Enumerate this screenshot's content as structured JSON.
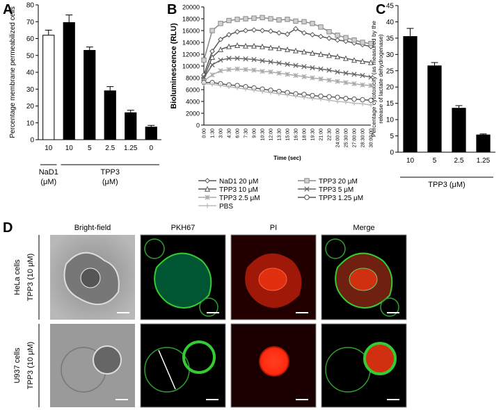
{
  "chart_data": [
    {
      "type": "bar",
      "panel": "A",
      "y_label": "Percentage membrane permeabilized cells",
      "categories": [
        "10",
        "10",
        "5",
        "2.5",
        "1.25",
        "0"
      ],
      "values": [
        62,
        69.5,
        53,
        29,
        16,
        7.5
      ],
      "errors": [
        3,
        4.5,
        2,
        2.5,
        1.5,
        1
      ],
      "colors": [
        "#ffffff",
        "#000000",
        "#000000",
        "#000000",
        "#000000",
        "#000000"
      ],
      "groups": [
        {
          "label": [
            "NaD1",
            "(μM)"
          ]
        },
        {
          "label": [
            "TPP3",
            "(μM)"
          ]
        }
      ],
      "ylim": [
        0,
        80
      ],
      "yticks": [
        0,
        10,
        20,
        30,
        40,
        50,
        60,
        70,
        80
      ]
    },
    {
      "type": "line",
      "panel": "B",
      "y_label": "Bioluminescence (RLU)",
      "x_label": "Time (sec)",
      "categories": [
        "0:00",
        "1:30",
        "3:00",
        "4:30",
        "6:00",
        "7:30",
        "9:00",
        "10:30",
        "12:00",
        "13:30",
        "15:00",
        "16:30",
        "18:00",
        "19:30",
        "21:00",
        "22:30",
        "24:00:00",
        "25:30:00",
        "27:00:00",
        "28:30:00",
        "30:00:00"
      ],
      "series": [
        {
          "name": "NaD1 20 μM",
          "color": "#555555",
          "marker": "diamond",
          "values": [
            8500,
            12500,
            14500,
            15300,
            15800,
            16000,
            16100,
            16000,
            15900,
            15600,
            15400,
            16300,
            15600,
            15300,
            15000,
            14700,
            14400,
            14200,
            13900,
            13600,
            13300
          ]
        },
        {
          "name": "TPP3 20 μM",
          "color": "#888888",
          "marker": "square",
          "values": [
            11000,
            16000,
            17200,
            17700,
            17900,
            18000,
            18100,
            18200,
            18000,
            17800,
            17900,
            17600,
            17500,
            17200,
            16600,
            15800,
            15200,
            14800,
            14400,
            14000,
            13800
          ]
        },
        {
          "name": "TPP3 10 μM",
          "color": "#555555",
          "marker": "triangle",
          "values": [
            8000,
            11500,
            12800,
            13300,
            13500,
            13400,
            13400,
            13300,
            13100,
            13000,
            12800,
            12600,
            12400,
            12200,
            12000,
            11800,
            11600,
            11300,
            11000,
            10800,
            10600
          ]
        },
        {
          "name": "TPP3 5 μM",
          "color": "#666666",
          "marker": "x",
          "values": [
            8000,
            10200,
            11000,
            11300,
            11300,
            11200,
            11100,
            10900,
            10700,
            10500,
            10300,
            10100,
            9900,
            9700,
            9500,
            9300,
            9000,
            8800,
            8600,
            8400,
            8100
          ]
        },
        {
          "name": "TPP3 2.5 μM",
          "color": "#aaaaaa",
          "marker": "star",
          "values": [
            7500,
            8500,
            9200,
            9400,
            9500,
            9400,
            9300,
            9100,
            9000,
            8800,
            8600,
            8400,
            8200,
            8000,
            7800,
            7600,
            7400,
            7200,
            7000,
            6800,
            6700
          ]
        },
        {
          "name": "TPP3 1.25 μM",
          "color": "#555555",
          "marker": "circle",
          "values": [
            7200,
            7200,
            7000,
            6800,
            6700,
            6500,
            6300,
            6100,
            5900,
            5700,
            5500,
            5300,
            5200,
            5000,
            4900,
            4800,
            4700,
            4500,
            4400,
            4300,
            4200
          ]
        },
        {
          "name": "PBS",
          "color": "#bbbbbb",
          "marker": "plus",
          "values": [
            7000,
            6900,
            6700,
            6500,
            6300,
            6100,
            5900,
            5700,
            5500,
            5300,
            5100,
            4900,
            4700,
            4500,
            4400,
            4200,
            4000,
            3900,
            3700,
            3600,
            3400
          ]
        }
      ],
      "ylim": [
        0,
        20000
      ],
      "yticks": [
        0,
        2000,
        4000,
        6000,
        8000,
        10000,
        12000,
        14000,
        16000,
        18000,
        20000
      ]
    },
    {
      "type": "bar",
      "panel": "C",
      "y_label": [
        "Percentage cytotoxicity (as measured by the",
        "release of lactate dehydrogenase)"
      ],
      "categories": [
        "10",
        "5",
        "2.5",
        "1.25"
      ],
      "values": [
        35.5,
        26.5,
        13.5,
        5.3
      ],
      "errors": [
        2.5,
        1,
        0.8,
        0.3
      ],
      "colors": [
        "#000000",
        "#000000",
        "#000000",
        "#000000"
      ],
      "groups": [
        {
          "label": [
            "TPP3 (μM)"
          ]
        }
      ],
      "ylim": [
        0,
        45
      ],
      "yticks": [
        0,
        5,
        10,
        15,
        20,
        25,
        30,
        35,
        40,
        45
      ]
    }
  ],
  "panel_d": {
    "letter": "D",
    "columns": [
      "Bright-field",
      "PKH67",
      "PI",
      "Merge"
    ],
    "rows": [
      {
        "cell": "HeLa cells",
        "treatment": "TPP3 (10 μM)"
      },
      {
        "cell": "U937 cells",
        "treatment": "TPP3 (10 μM)"
      }
    ]
  }
}
